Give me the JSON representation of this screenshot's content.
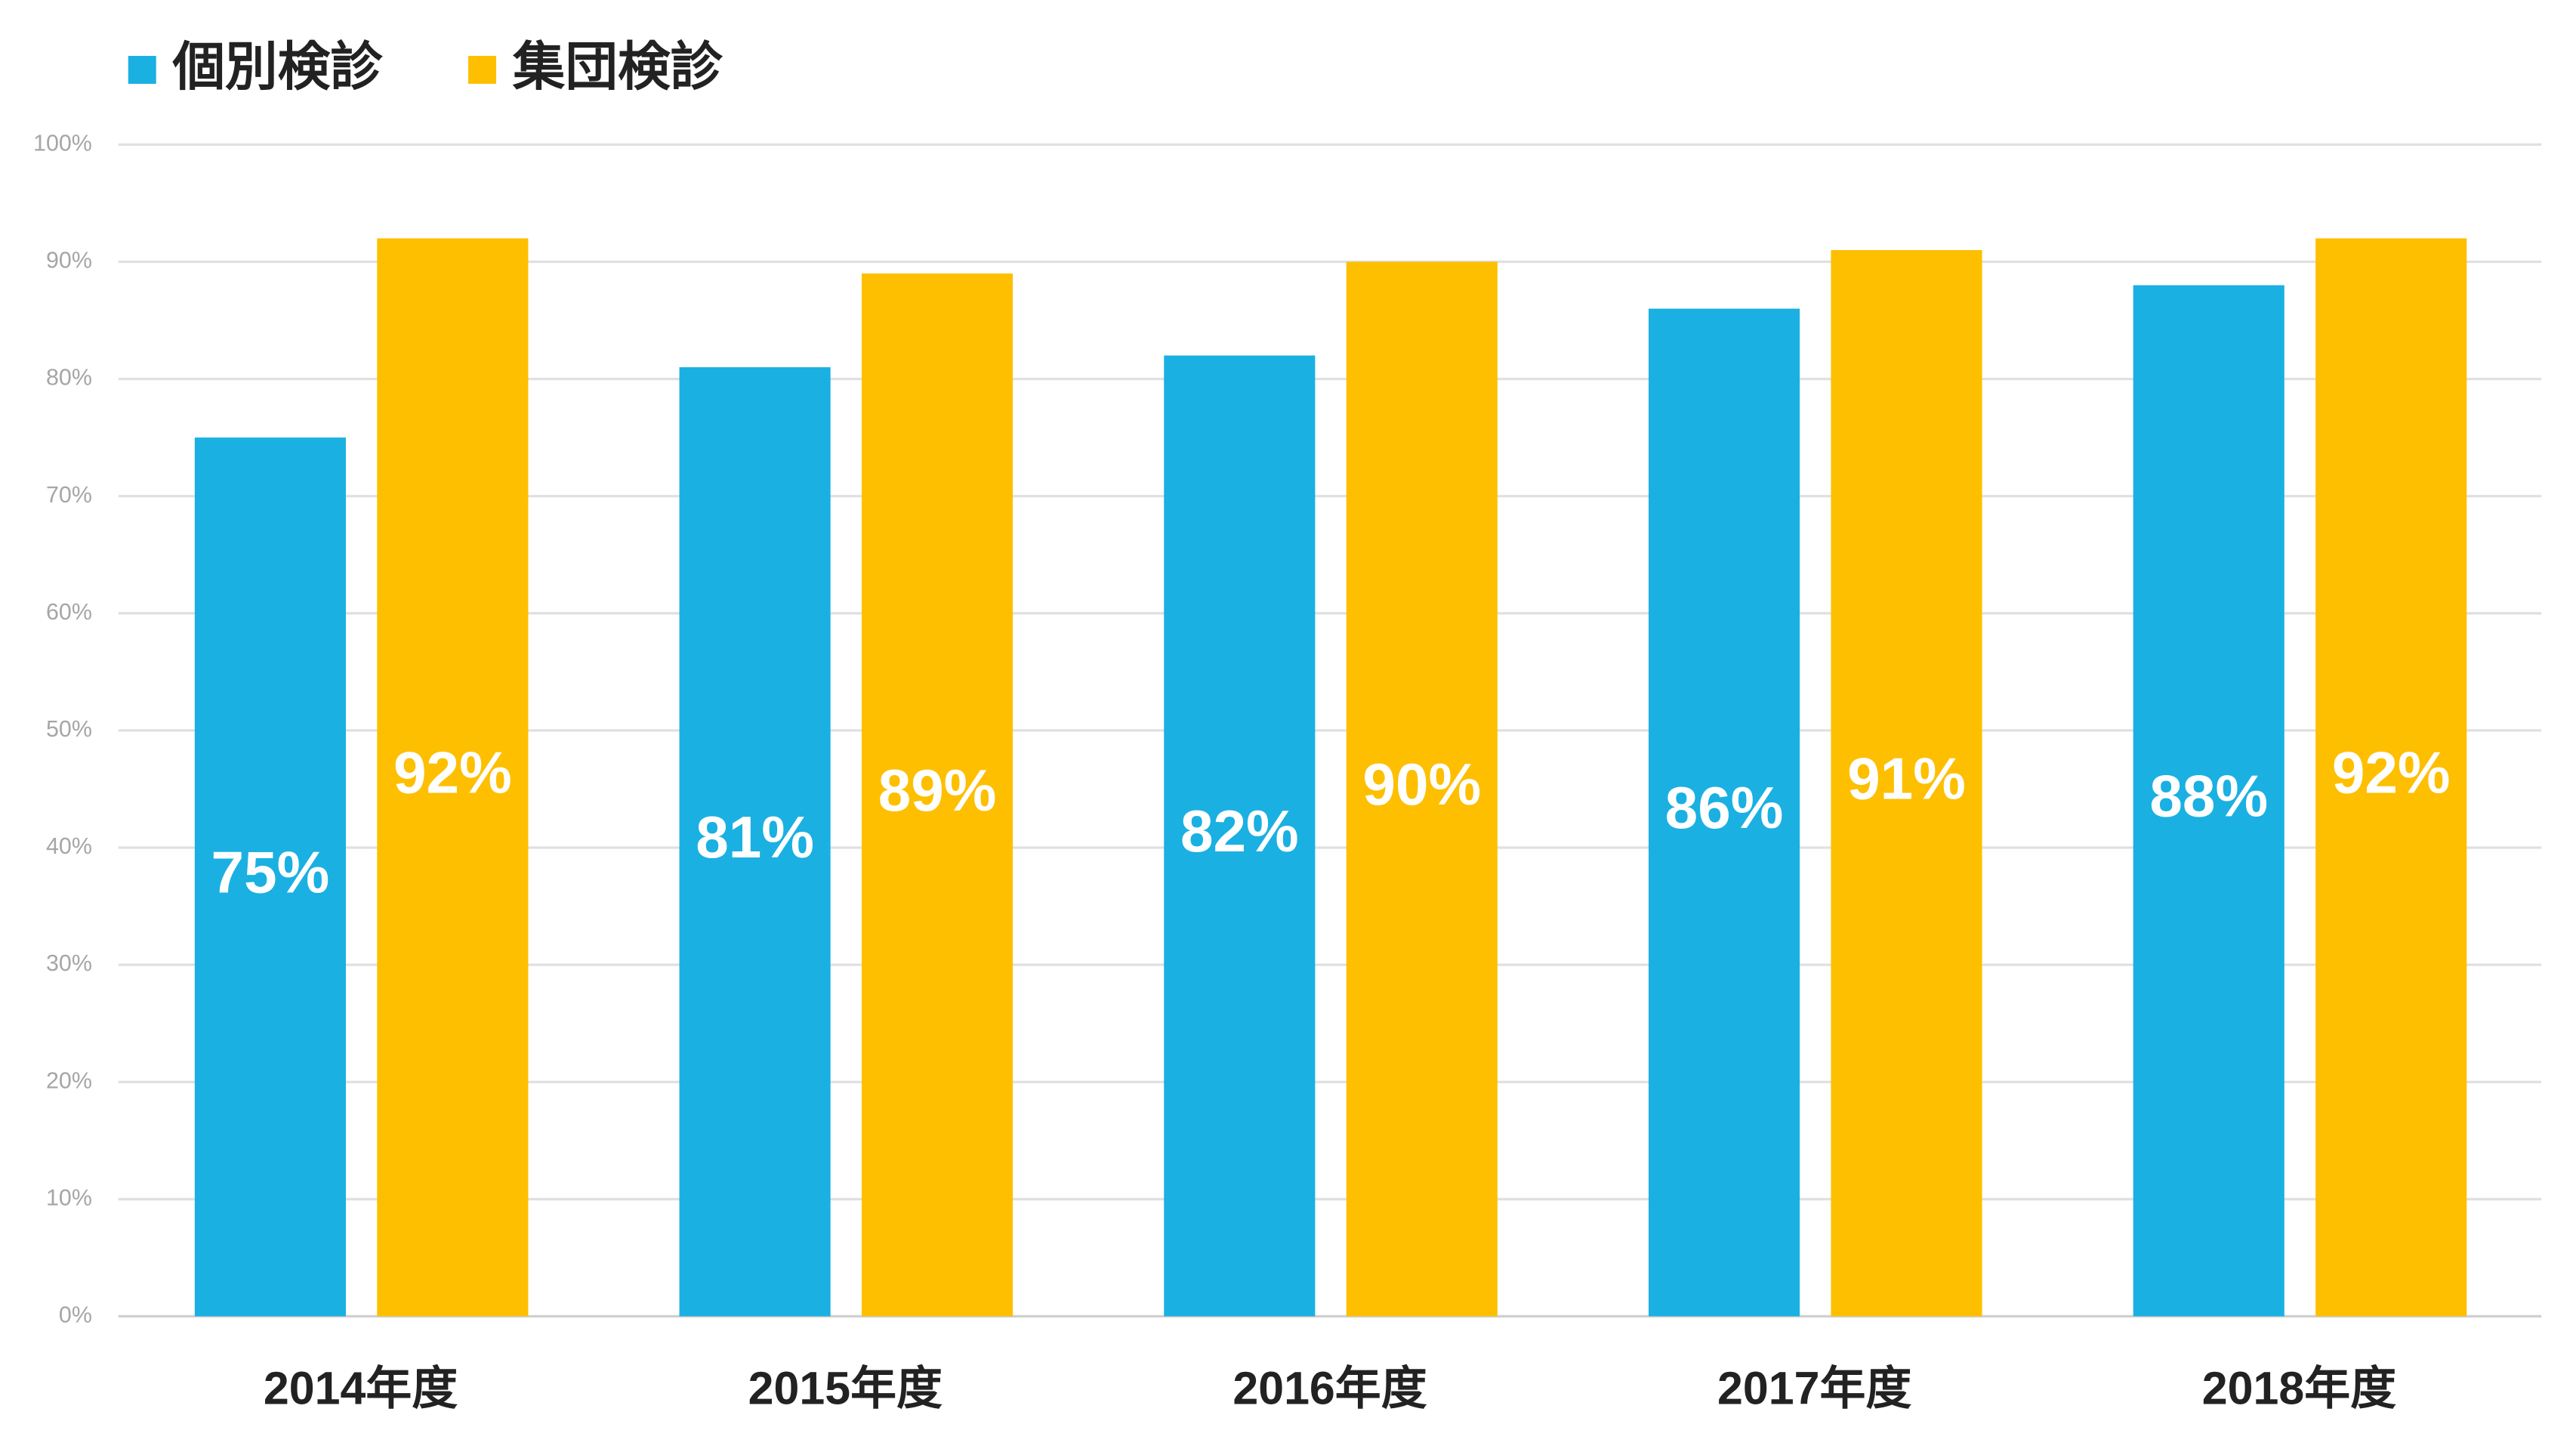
{
  "chart_data": {
    "type": "bar",
    "categories": [
      "2014年度",
      "2015年度",
      "2016年度",
      "2017年度",
      "2018年度"
    ],
    "series": [
      {
        "name": "個別検診",
        "color": "#1ab0e2",
        "values": [
          75,
          81,
          82,
          86,
          88
        ],
        "value_labels": [
          "75%",
          "81%",
          "82%",
          "86%",
          "88%"
        ]
      },
      {
        "name": "集団検診",
        "color": "#fdbf00",
        "values": [
          92,
          89,
          90,
          91,
          92
        ],
        "value_labels": [
          "92%",
          "89%",
          "90%",
          "91%",
          "92%"
        ]
      }
    ],
    "ylim": [
      0,
      100
    ],
    "yticks": [
      {
        "value": 0,
        "label": "0%"
      },
      {
        "value": 10,
        "label": "10%"
      },
      {
        "value": 20,
        "label": "20%"
      },
      {
        "value": 30,
        "label": "30%"
      },
      {
        "value": 40,
        "label": "40%"
      },
      {
        "value": 50,
        "label": "50%"
      },
      {
        "value": 60,
        "label": "60%"
      },
      {
        "value": 70,
        "label": "70%"
      },
      {
        "value": 80,
        "label": "80%"
      },
      {
        "value": 90,
        "label": "90%"
      },
      {
        "value": 100,
        "label": "100%"
      }
    ],
    "grid": true,
    "legend": "top-left"
  }
}
